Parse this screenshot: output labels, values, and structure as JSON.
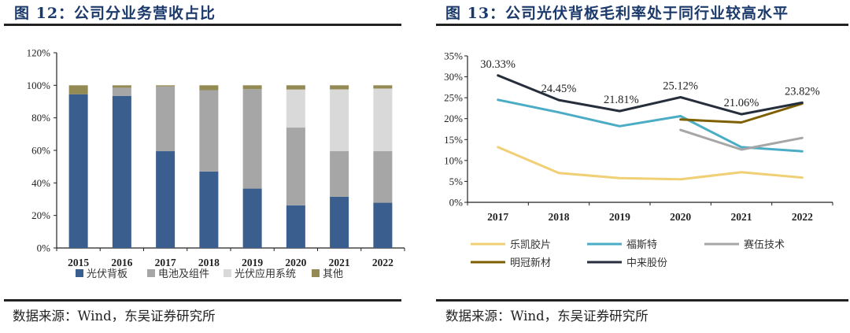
{
  "left": {
    "title": "图 12：公司分业务营收占比",
    "source": "数据来源：Wind，东吴证券研究所"
  },
  "right": {
    "title": "图 13：公司光伏背板毛利率处于同行业较高水平",
    "source": "数据来源：Wind，东吴证券研究所"
  },
  "chart_data": [
    {
      "type": "bar",
      "stacked": true,
      "title": "公司分业务营收占比",
      "xlabel": "",
      "ylabel": "",
      "ylim": [
        0,
        120
      ],
      "yticks": [
        "0%",
        "20%",
        "40%",
        "60%",
        "80%",
        "100%",
        "120%"
      ],
      "ytick_values": [
        0,
        20,
        40,
        60,
        80,
        100,
        120
      ],
      "categories": [
        "2015",
        "2016",
        "2017",
        "2018",
        "2019",
        "2020",
        "2021",
        "2022"
      ],
      "grid": false,
      "legend_position": "bottom",
      "series": [
        {
          "name": "光伏背板",
          "color": "#3a5f8f",
          "values": [
            94.5,
            93.5,
            59.5,
            47.0,
            36.5,
            26.2,
            31.5,
            27.8
          ]
        },
        {
          "name": "电池及组件",
          "color": "#a6a6a6",
          "values": [
            0.0,
            5.0,
            39.8,
            50.0,
            61.2,
            47.8,
            28.0,
            31.7
          ]
        },
        {
          "name": "光伏应用系统",
          "color": "#d9d9d9",
          "values": [
            0.0,
            0.0,
            0.0,
            0.0,
            0.0,
            23.4,
            38.0,
            38.5
          ]
        },
        {
          "name": "其他",
          "color": "#948a54",
          "values": [
            5.5,
            1.5,
            0.7,
            3.0,
            2.3,
            2.6,
            2.5,
            2.0
          ]
        }
      ]
    },
    {
      "type": "line",
      "title": "公司光伏背板毛利率处于同行业较高水平",
      "xlabel": "",
      "ylabel": "",
      "ylim": [
        0,
        35
      ],
      "yticks": [
        "0%",
        "5%",
        "10%",
        "15%",
        "20%",
        "25%",
        "30%",
        "35%"
      ],
      "ytick_values": [
        0,
        5,
        10,
        15,
        20,
        25,
        30,
        35
      ],
      "x": [
        "2017",
        "2018",
        "2019",
        "2020",
        "2021",
        "2022"
      ],
      "grid": false,
      "legend_position": "bottom",
      "series": [
        {
          "name": "乐凯胶片",
          "color": "#f0cf75",
          "values": [
            13.2,
            7.0,
            5.8,
            5.5,
            7.2,
            5.9
          ]
        },
        {
          "name": "福斯特",
          "color": "#4bacc6",
          "values": [
            24.5,
            21.5,
            18.2,
            20.6,
            13.2,
            12.2
          ]
        },
        {
          "name": "赛伍技术",
          "color": "#a6a6a6",
          "values": [
            null,
            null,
            null,
            17.3,
            12.6,
            15.4
          ]
        },
        {
          "name": "明冠新材",
          "color": "#7f6000",
          "values": [
            null,
            null,
            null,
            19.8,
            19.1,
            23.6
          ]
        },
        {
          "name": "中来股份",
          "color": "#262e3c",
          "values": [
            30.33,
            24.45,
            21.81,
            25.12,
            21.06,
            23.82
          ],
          "data_labels": [
            "30.33%",
            "24.45%",
            "21.81%",
            "25.12%",
            "21.06%",
            "23.82%"
          ]
        }
      ]
    }
  ]
}
